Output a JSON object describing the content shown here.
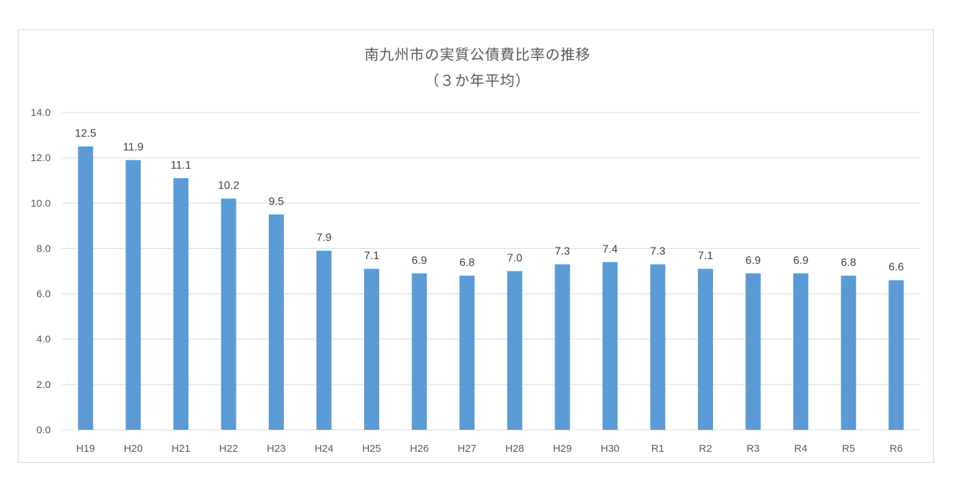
{
  "chart_data": {
    "type": "bar",
    "title": "南九州市の実質公債費比率の推移",
    "subtitle": "（３か年平均）",
    "categories": [
      "H19",
      "H20",
      "H21",
      "H22",
      "H23",
      "H24",
      "H25",
      "H26",
      "H27",
      "H28",
      "H29",
      "H30",
      "R1",
      "R2",
      "R3",
      "R4",
      "R5",
      "R6"
    ],
    "values": [
      12.5,
      11.9,
      11.1,
      10.2,
      9.5,
      7.9,
      7.1,
      6.9,
      6.8,
      7.0,
      7.3,
      7.4,
      7.3,
      7.1,
      6.9,
      6.9,
      6.8,
      6.6
    ],
    "ylim": [
      0,
      14
    ],
    "yticks": [
      "0.0",
      "2.0",
      "4.0",
      "6.0",
      "8.0",
      "10.0",
      "12.0",
      "14.0"
    ],
    "grid": true,
    "legend": "none",
    "bar_color": "#5b9bd5",
    "grid_color": "#d9d9d9",
    "text_color": "#595959",
    "label_color": "#404040"
  }
}
